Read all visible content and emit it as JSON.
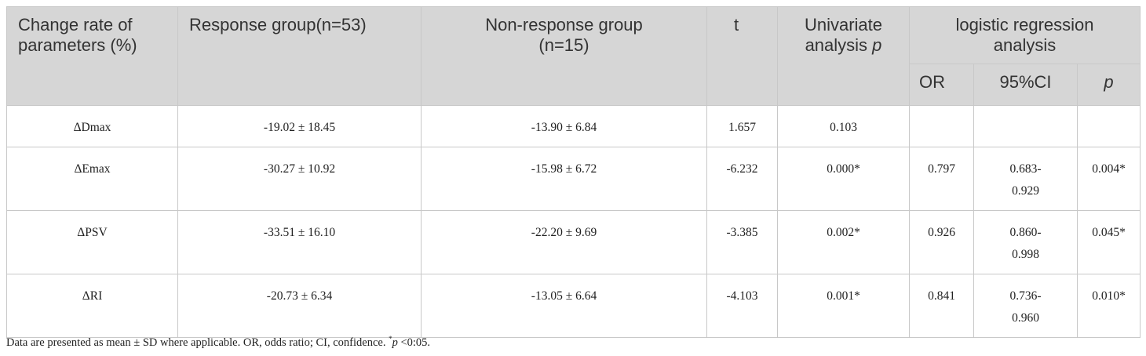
{
  "table": {
    "header": {
      "columns": [
        "Change rate of parameters (%)",
        "Response group(n=53)",
        "Non-response group (n=15)",
        "t"
      ],
      "univariate": [
        "Univariate analysis",
        "p"
      ],
      "group": "logistic regression analysis",
      "subcolumns": [
        "OR",
        "95%CI",
        "p"
      ]
    },
    "rows": [
      [
        "ΔDmax",
        "-19.02 ± 18.45",
        "-13.90 ± 6.84",
        "1.657",
        "0.103",
        null,
        null,
        null
      ],
      [
        "ΔEmax",
        "-30.27 ± 10.92",
        "-15.98 ± 6.72",
        "-6.232",
        "0.000*",
        "0.797",
        "0.683-0.929",
        "0.004*"
      ],
      [
        "ΔPSV",
        "-33.51 ± 16.10",
        "-22.20 ± 9.69",
        "-3.385",
        "0.002*",
        "0.926",
        "0.860-0.998",
        "0.045*"
      ],
      [
        "ΔRI",
        "-20.73 ± 6.34",
        "-13.05 ± 6.64",
        "-4.103",
        "0.001*",
        "0.841",
        "0.736-0.960",
        "0.010*"
      ]
    ],
    "footnote": [
      "Data are presented as mean ± SD where applicable. OR, odds ratio; CI, confidence. ",
      "*",
      "p",
      " <0:05."
    ]
  }
}
